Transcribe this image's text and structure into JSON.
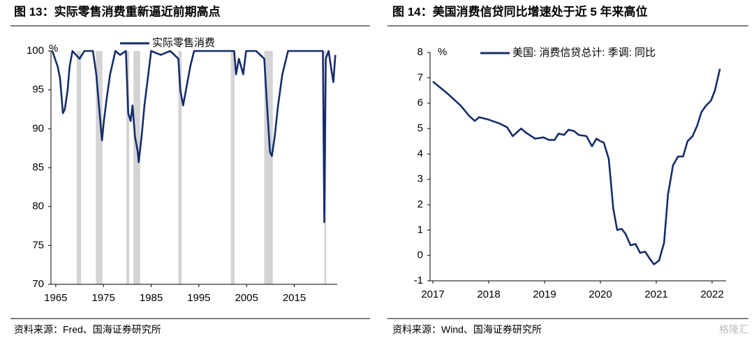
{
  "chart_data": [
    {
      "type": "line",
      "title": "图 13：实际零售消费重新逼近前期高点",
      "source": "资料来源：Fred、国海证券研究所",
      "y_unit": "%",
      "series": [
        {
          "name": "实际零售消费",
          "color": "#152c6b",
          "x": [
            1964.3,
            1965.4,
            1965.9,
            1966.5,
            1966.9,
            1967.5,
            1967.9,
            1968.5,
            1970.0,
            1971.0,
            1972.8,
            1973.5,
            1974.2,
            1974.7,
            1975.1,
            1975.7,
            1976.4,
            1977.5,
            1978.5,
            1979.7,
            1980.2,
            1980.7,
            1981.1,
            1981.6,
            1982.2,
            1982.4,
            1983.0,
            1983.6,
            1984.4,
            1985.0,
            1987.0,
            1989.0,
            1990.7,
            1991.1,
            1991.7,
            1992.3,
            1993.2,
            1994.0,
            1997.0,
            2000.0,
            2002.4,
            2002.8,
            2003.4,
            2004.3,
            2004.9,
            2007.0,
            2008.7,
            2009.3,
            2009.9,
            2010.3,
            2010.9,
            2011.6,
            2012.5,
            2013.7,
            2016.0,
            2019.0,
            2021.0,
            2021.3,
            2021.6,
            2022.2,
            2022.8,
            2023.2,
            2023.6
          ],
          "values": [
            100,
            98,
            96.5,
            92,
            92.5,
            95,
            98,
            100,
            99,
            100,
            100,
            97,
            92,
            88.5,
            91,
            94,
            97,
            100,
            99.5,
            100,
            92,
            91,
            93,
            89,
            87,
            85.7,
            89,
            93,
            97,
            100,
            99.5,
            100,
            99,
            95,
            93,
            95,
            98,
            100,
            100,
            100,
            100,
            97,
            99,
            97,
            100,
            100,
            99,
            93,
            87,
            86.5,
            89,
            93,
            97,
            100,
            100,
            100,
            100,
            78,
            99,
            100,
            97.5,
            96,
            99.5
          ]
        }
      ],
      "shaded": [
        [
          1969.4,
          1970.3
        ],
        [
          1973.4,
          1974.8
        ],
        [
          1979.8,
          1980.4
        ],
        [
          1981.3,
          1982.7
        ],
        [
          1990.7,
          1991.4
        ],
        [
          2001.7,
          2002.5
        ],
        [
          2008.7,
          2010.5
        ],
        [
          2021.3,
          2021.7
        ]
      ],
      "shade_color": "#d4d4d4",
      "xlim": [
        1964,
        2024
      ],
      "xticks": [
        1965,
        1975,
        1985,
        1995,
        2005,
        2015
      ],
      "ylim": [
        70,
        100
      ],
      "yticks": [
        70,
        75,
        80,
        85,
        90,
        95,
        100
      ]
    },
    {
      "type": "line",
      "title": "图 14：美国消费信贷同比增速处于近 5 年来高位",
      "source": "资料来源：Wind、国海证券研究所",
      "y_unit": "%",
      "series": [
        {
          "name": "美国: 消费信贷总计: 季调: 同比",
          "color": "#152c6b",
          "x": [
            2017.0,
            2017.25,
            2017.5,
            2017.65,
            2017.75,
            2017.83,
            2018.0,
            2018.19,
            2018.33,
            2018.43,
            2018.58,
            2018.66,
            2018.83,
            2018.98,
            2019.08,
            2019.18,
            2019.25,
            2019.35,
            2019.43,
            2019.53,
            2019.61,
            2019.75,
            2019.85,
            2019.93,
            2020.0,
            2020.06,
            2020.15,
            2020.23,
            2020.3,
            2020.38,
            2020.45,
            2020.54,
            2020.63,
            2020.71,
            2020.8,
            2020.89,
            2020.96,
            2021.05,
            2021.14,
            2021.21,
            2021.3,
            2021.39,
            2021.48,
            2021.56,
            2021.65,
            2021.73,
            2021.81,
            2021.89,
            2021.98,
            2022.05,
            2022.14
          ],
          "values": [
            6.85,
            6.4,
            5.9,
            5.5,
            5.3,
            5.45,
            5.35,
            5.2,
            5.05,
            4.7,
            5.0,
            4.85,
            4.6,
            4.65,
            4.55,
            4.55,
            4.8,
            4.75,
            4.95,
            4.9,
            4.75,
            4.7,
            4.3,
            4.6,
            4.5,
            4.45,
            3.8,
            1.85,
            1.0,
            1.05,
            0.85,
            0.4,
            0.45,
            0.1,
            0.15,
            -0.15,
            -0.35,
            -0.2,
            0.5,
            2.4,
            3.55,
            3.9,
            3.9,
            4.5,
            4.7,
            5.1,
            5.65,
            5.9,
            6.1,
            6.5,
            7.35
          ]
        }
      ],
      "xlim": [
        2016.95,
        2022.25
      ],
      "xticks": [
        2017,
        2018,
        2019,
        2020,
        2021,
        2022
      ],
      "ylim": [
        -1,
        8
      ],
      "yticks": [
        -1,
        0,
        1,
        2,
        3,
        4,
        5,
        6,
        7,
        8
      ]
    }
  ],
  "watermark": "格隆汇"
}
